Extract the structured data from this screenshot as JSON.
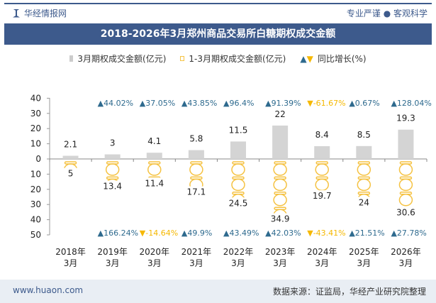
{
  "header": {
    "brand": "华经情报网",
    "slogan": "专业严谨 ● 客观科学"
  },
  "title": "2018-2026年3月郑州商品交易所白糖期权成交金额",
  "legend": {
    "s1": "3月期权成交金额(亿元)",
    "s2": "1-3月期权成交金额(亿元)",
    "s3": "同比增长(%)"
  },
  "footer": {
    "left": "www.huaon.com",
    "right": "数据来源：证监局，华经产业研究院整理"
  },
  "colors": {
    "bar": "#d4d4d4",
    "coin": "#f5c242",
    "up": "#2e6a8e",
    "down": "#f5b800",
    "header": "#3d5a8c"
  },
  "chart_data": {
    "type": "bar",
    "categories": [
      "2018年\n3月",
      "2019年\n3月",
      "2020年\n3月",
      "2021年\n3月",
      "2022年\n3月",
      "2023年\n3月",
      "2024年\n3月",
      "2025年\n3月",
      "2026年\n3月"
    ],
    "yticks_top": [
      "40",
      "30",
      "20",
      "10",
      "0"
    ],
    "yticks_bottom": [
      "10",
      "20",
      "30",
      "40",
      "50"
    ],
    "series": [
      {
        "name": "3月期权成交金额(亿元)",
        "values": [
          2.1,
          3,
          4.1,
          5.8,
          11.5,
          22,
          8.4,
          8.5,
          19.3
        ],
        "labels": [
          "2.1",
          "3",
          "4.1",
          "5.8",
          "11.5",
          "22",
          "8.4",
          "8.5",
          "19.3"
        ]
      },
      {
        "name": "1-3月期权成交金额(亿元)",
        "values": [
          5,
          13.4,
          11.4,
          17.1,
          24.5,
          34.9,
          19.7,
          24,
          30.6
        ],
        "labels": [
          "5",
          "13.4",
          "11.4",
          "17.1",
          "24.5",
          "34.9",
          "19.7",
          "24",
          "30.6"
        ]
      }
    ],
    "yoy_march": [
      null,
      44.02,
      37.05,
      43.85,
      96.4,
      91.39,
      -61.67,
      0.67,
      128.04
    ],
    "yoy_march_labels": [
      "",
      "44.02%",
      "37.05%",
      "43.85%",
      "96.4%",
      "91.39%",
      "-61.67%",
      "0.67%",
      "128.04%"
    ],
    "yoy_ytd": [
      null,
      166.24,
      -14.64,
      49.9,
      43.49,
      42.03,
      -43.41,
      21.51,
      27.78
    ],
    "yoy_ytd_labels": [
      "",
      "166.24%",
      "-14.64%",
      "49.9%",
      "43.49%",
      "42.03%",
      "-43.41%",
      "21.51%",
      "27.78%"
    ],
    "ylim_top": [
      0,
      40
    ],
    "ylim_bottom": [
      0,
      50
    ]
  }
}
